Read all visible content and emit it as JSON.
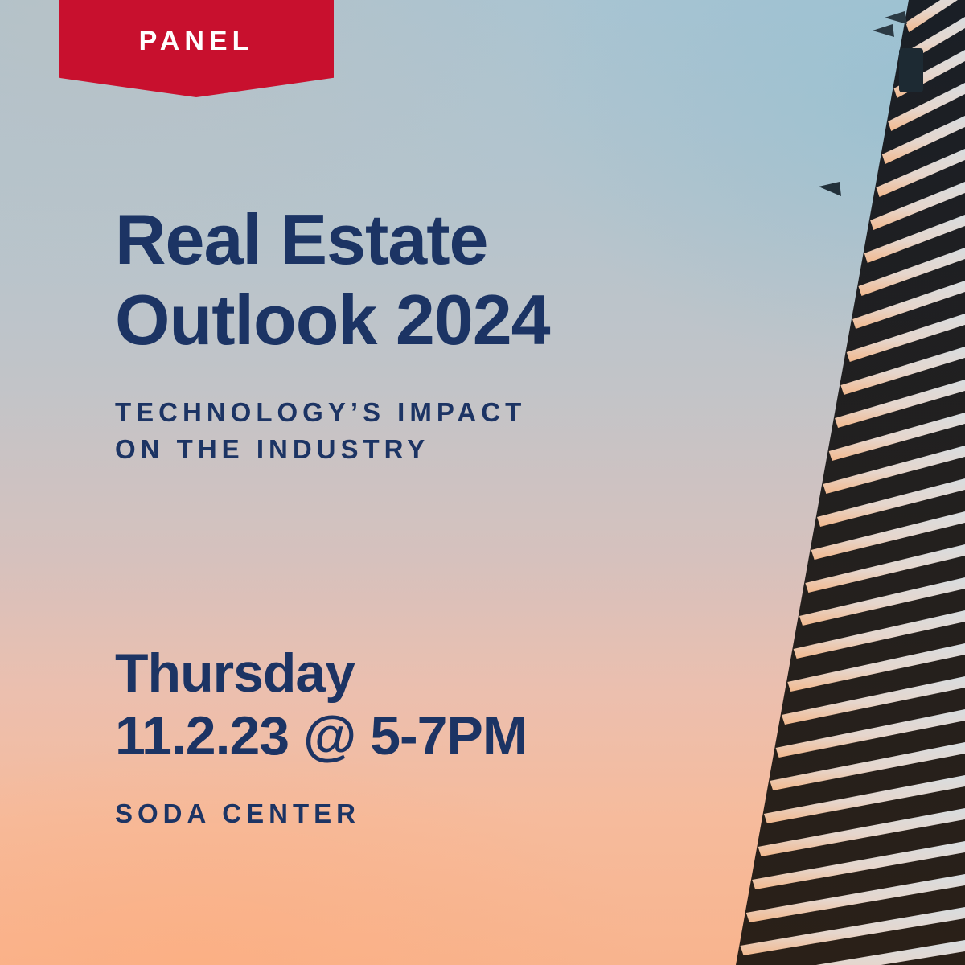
{
  "banner": {
    "label": "PANEL"
  },
  "title": {
    "line1": "Real Estate",
    "line2": "Outlook 2024"
  },
  "subtitle": {
    "line1": "TECHNOLOGY’S IMPACT",
    "line2": "ON THE INDUSTRY"
  },
  "event": {
    "day": "Thursday",
    "date_time": "11.2.23 @ 5-7PM",
    "venue": "SODA CENTER"
  },
  "colors": {
    "accent_red": "#c8102e",
    "text_navy": "#1c3464",
    "sky_top": "#a9c4d2",
    "sky_bottom": "#f8b48e"
  }
}
